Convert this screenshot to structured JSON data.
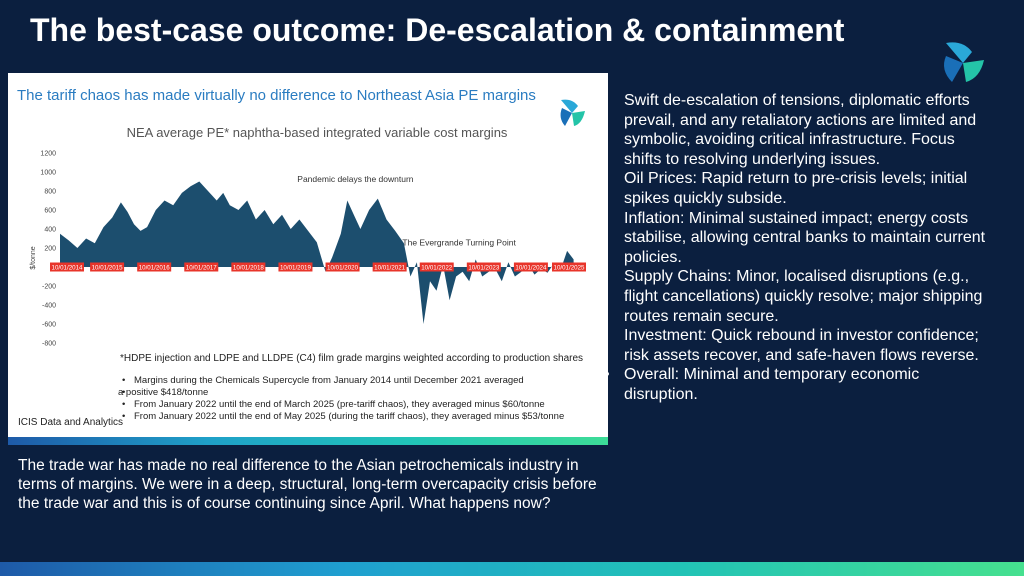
{
  "slide": {
    "title": "The best-case outcome: De-escalation & containment",
    "bottom_text": "The trade war has made no real difference to the Asian petrochemicals  industry in terms of margins. We were in a deep, structural, long-term overcapacity crisis before the trade war and this is of course continuing since April. What happens now?",
    "right_paragraphs": [
      "Swift de-escalation of tensions, diplomatic efforts prevail, and any retaliatory actions are limited and symbolic, avoiding critical infrastructure. Focus shifts to resolving underlying issues.",
      "Oil Prices: Rapid return to pre-crisis levels; initial spikes quickly subside.",
      "Inflation: Minimal sustained impact; energy costs stabilise, allowing central banks to maintain current policies.",
      "Supply Chains: Minor, localised disruptions (e.g., flight cancellations) quickly resolve; major shipping routes remain secure.",
      "Investment: Quick rebound in investor confidence; risk assets recover, and safe-haven flows reverse."
    ],
    "right_bullet": "Overall: Minimal and temporary economic disruption.",
    "bullet_symbol": "•"
  },
  "panel": {
    "headline": "The tariff chaos has made virtually no difference to Northeast Asia PE margins",
    "footnote": "*HDPE injection and LDPE and LLDPE (C4) film grade margins weighted according to production shares",
    "bullets": [
      "Margins during the Chemicals Supercycle from January 2014 until December 2021 averaged",
      "a positive $418/tonne",
      "From January 2022 until the end of March 2025 (pre-tariff chaos), they averaged minus $60/tonne",
      "From January 2022 until the end of May 2025 (during the tariff chaos), they averaged minus $53/tonne"
    ],
    "source": "ICIS Data and Analytics"
  },
  "chart_data": {
    "type": "area",
    "title": "NEA average PE* naphtha-based integrated variable cost margins",
    "xlabel": "",
    "ylabel": "$/tonne",
    "ylim": [
      -800,
      1200
    ],
    "yticks": [
      1200,
      1000,
      800,
      600,
      400,
      200,
      0,
      -200,
      -400,
      -600,
      -800
    ],
    "x_tick_labels": [
      "10/01/2014",
      "10/01/2015",
      "10/01/2016",
      "10/01/2017",
      "10/01/2018",
      "10/01/2019",
      "10/01/2020",
      "10/01/2021",
      "10/01/2022",
      "10/01/2023",
      "10/01/2024",
      "10/01/2025"
    ],
    "series": [
      {
        "name": "NEA average PE margin",
        "x": [
          2014.0,
          2014.2,
          2014.4,
          2014.6,
          2014.8,
          2015.0,
          2015.2,
          2015.4,
          2015.55,
          2015.7,
          2015.85,
          2016.0,
          2016.2,
          2016.4,
          2016.6,
          2016.8,
          2017.0,
          2017.2,
          2017.4,
          2017.6,
          2017.75,
          2017.9,
          2018.1,
          2018.3,
          2018.5,
          2018.7,
          2018.9,
          2019.1,
          2019.3,
          2019.5,
          2019.7,
          2019.9,
          2020.1,
          2020.25,
          2020.45,
          2020.6,
          2020.75,
          2020.9,
          2021.1,
          2021.3,
          2021.5,
          2021.7,
          2021.9,
          2022.05,
          2022.2,
          2022.35,
          2022.5,
          2022.65,
          2022.8,
          2022.95,
          2023.1,
          2023.25,
          2023.4,
          2023.55,
          2023.7,
          2023.85,
          2024.0,
          2024.15,
          2024.3,
          2024.45,
          2024.6,
          2024.75,
          2024.9,
          2025.05,
          2025.2,
          2025.35,
          2025.5,
          2025.65,
          2025.8
        ],
        "y": [
          350,
          280,
          200,
          300,
          250,
          420,
          520,
          680,
          580,
          450,
          380,
          420,
          600,
          700,
          650,
          780,
          850,
          900,
          800,
          700,
          780,
          650,
          600,
          700,
          500,
          600,
          450,
          550,
          400,
          500,
          380,
          260,
          -50,
          100,
          350,
          700,
          550,
          400,
          600,
          720,
          500,
          380,
          250,
          -100,
          50,
          -600,
          -150,
          -250,
          20,
          -350,
          -100,
          -50,
          -150,
          80,
          -100,
          -50,
          -20,
          -150,
          50,
          -100,
          -50,
          30,
          -80,
          -20,
          -60,
          40,
          -30,
          170,
          80
        ]
      }
    ],
    "annotations": [
      {
        "text": "Pandemic delays the  downturn",
        "x": 2020.6,
        "y": 620
      },
      {
        "text": "The Evergrande Turning Point",
        "x": 2022.05,
        "y": 100
      }
    ],
    "colors": {
      "area": "#1c4e6e",
      "tick_box": "#e8342a",
      "tick_text": "#ffffff"
    }
  }
}
